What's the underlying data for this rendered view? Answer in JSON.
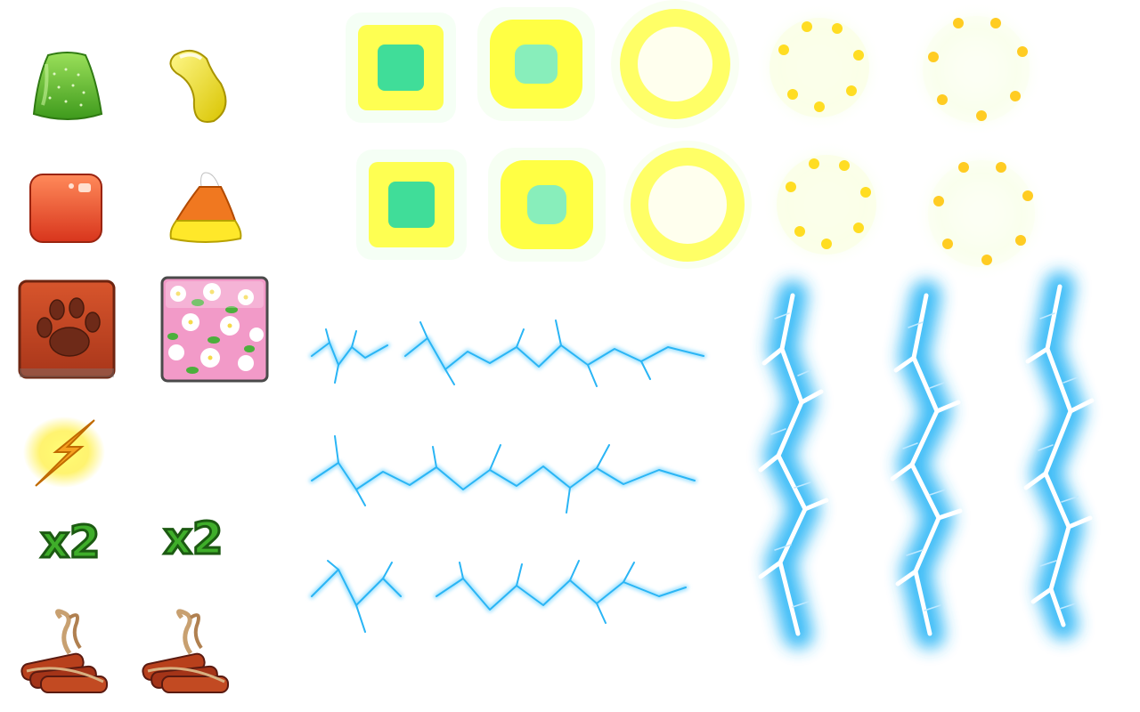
{
  "sheet": {
    "background": "#ffffff"
  },
  "candies": [
    {
      "name": "green-gumdrop-icon",
      "color": "#6cc23a"
    },
    {
      "name": "yellow-jellybean-icon",
      "color": "#f2e63a"
    },
    {
      "name": "red-jelly-square-icon",
      "color": "#f0563a"
    },
    {
      "name": "candy-corn-icon",
      "color": "#f07820"
    },
    {
      "name": "paw-print-tile-icon",
      "color": "#b8421e"
    },
    {
      "name": "flower-pattern-tile-icon",
      "color": "#f29ac8"
    }
  ],
  "powerups": {
    "lightning_bolt_icon": "lightning-bolt-icon",
    "multiplier_label": "x2",
    "dynamite_icon": "dynamite-bundle-icon"
  },
  "effects": {
    "burst_frames_count_per_row": 5,
    "burst_rows": 2,
    "burst_colors": [
      "#ffff33",
      "#33ddaa",
      "#ffcc33"
    ],
    "lightning_color": "#2ab5f5",
    "lightning_glow": "#9fe2ff"
  }
}
